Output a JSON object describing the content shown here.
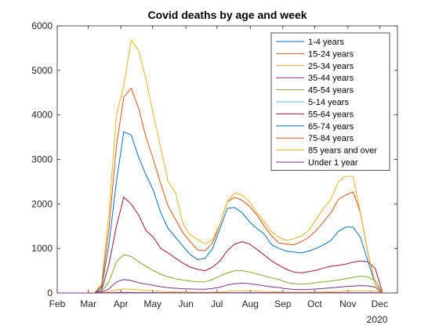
{
  "chart_data": {
    "type": "line",
    "title": "Covid deaths by age and week",
    "xlabel": "",
    "ylabel": "",
    "year_label": "2020",
    "xlim": [
      0,
      46
    ],
    "ylim": [
      0,
      6000
    ],
    "grid": false,
    "legend_position": "top-right",
    "x_ticks": [
      {
        "label": "Feb",
        "week": 0
      },
      {
        "label": "Mar",
        "week": 4.2
      },
      {
        "label": "Apr",
        "week": 8.6
      },
      {
        "label": "May",
        "week": 12.9
      },
      {
        "label": "Jun",
        "week": 17.4
      },
      {
        "label": "Jul",
        "week": 21.6
      },
      {
        "label": "Aug",
        "week": 26.1
      },
      {
        "label": "Sep",
        "week": 30.5
      },
      {
        "label": "Oct",
        "week": 34.8
      },
      {
        "label": "Nov",
        "week": 39.3
      },
      {
        "label": "Dec",
        "week": 43.6
      }
    ],
    "y_ticks": [
      0,
      1000,
      2000,
      3000,
      4000,
      5000,
      6000
    ],
    "x": [
      0,
      1,
      2,
      3,
      4,
      5,
      6,
      7,
      8,
      9,
      10,
      11,
      12,
      13,
      14,
      15,
      16,
      17,
      18,
      19,
      20,
      21,
      22,
      23,
      24,
      25,
      26,
      27,
      28,
      29,
      30,
      31,
      32,
      33,
      34,
      35,
      36,
      37,
      38,
      39,
      40,
      41,
      42,
      43,
      44
    ],
    "series": [
      {
        "name": "1-4 years",
        "color": "#0072BD",
        "values": [
          0,
          0,
          0,
          0,
          0,
          0,
          0,
          1,
          2,
          2,
          3,
          2,
          2,
          2,
          1,
          1,
          1,
          1,
          1,
          1,
          1,
          1,
          1,
          1,
          1,
          1,
          1,
          1,
          1,
          1,
          1,
          1,
          1,
          1,
          1,
          1,
          1,
          1,
          1,
          1,
          1,
          1,
          1,
          1,
          0
        ]
      },
      {
        "name": "15-24 years",
        "color": "#D95319",
        "values": [
          0,
          0,
          0,
          0,
          0,
          0,
          1,
          5,
          12,
          15,
          14,
          11,
          8,
          6,
          5,
          4,
          3,
          3,
          3,
          3,
          3,
          3,
          3,
          4,
          4,
          4,
          4,
          4,
          3,
          3,
          3,
          3,
          3,
          3,
          3,
          3,
          3,
          3,
          3,
          4,
          4,
          4,
          4,
          3,
          0
        ]
      },
      {
        "name": "25-34 years",
        "color": "#EDB120",
        "values": [
          0,
          0,
          0,
          0,
          0,
          0,
          4,
          30,
          70,
          90,
          85,
          70,
          55,
          45,
          35,
          30,
          25,
          22,
          20,
          18,
          18,
          20,
          25,
          35,
          45,
          50,
          48,
          40,
          32,
          28,
          25,
          20,
          18,
          18,
          20,
          22,
          25,
          28,
          32,
          38,
          45,
          50,
          48,
          40,
          0
        ]
      },
      {
        "name": "35-44 years",
        "color": "#7E2F8E",
        "values": [
          0,
          0,
          0,
          0,
          0,
          0,
          10,
          90,
          250,
          300,
          280,
          230,
          200,
          170,
          140,
          120,
          105,
          95,
          90,
          85,
          85,
          100,
          130,
          180,
          210,
          220,
          210,
          185,
          160,
          135,
          120,
          95,
          80,
          75,
          80,
          90,
          100,
          115,
          130,
          145,
          155,
          165,
          160,
          130,
          0
        ]
      },
      {
        "name": "45-54 years",
        "color": "#77AC30",
        "values": [
          0,
          0,
          0,
          0,
          0,
          0,
          30,
          250,
          700,
          860,
          820,
          700,
          600,
          500,
          420,
          360,
          320,
          290,
          270,
          250,
          250,
          300,
          380,
          450,
          500,
          500,
          470,
          430,
          380,
          340,
          300,
          240,
          210,
          200,
          210,
          230,
          250,
          270,
          290,
          320,
          350,
          380,
          360,
          280,
          0
        ]
      },
      {
        "name": "5-14 years",
        "color": "#4DBEEE",
        "values": [
          0,
          0,
          0,
          0,
          0,
          0,
          0,
          1,
          3,
          4,
          4,
          3,
          3,
          2,
          2,
          1,
          1,
          1,
          1,
          1,
          1,
          1,
          1,
          2,
          2,
          2,
          2,
          2,
          1,
          1,
          1,
          1,
          1,
          1,
          1,
          1,
          1,
          1,
          1,
          1,
          1,
          1,
          1,
          1,
          0
        ]
      },
      {
        "name": "55-64 years",
        "color": "#A2142F",
        "values": [
          0,
          0,
          0,
          0,
          0,
          0,
          60,
          650,
          1500,
          2150,
          2000,
          1750,
          1400,
          1250,
          1000,
          900,
          780,
          670,
          580,
          530,
          500,
          580,
          720,
          950,
          1100,
          1150,
          1100,
          980,
          850,
          720,
          620,
          530,
          470,
          450,
          480,
          510,
          560,
          600,
          620,
          650,
          690,
          720,
          700,
          550,
          0
        ]
      },
      {
        "name": "65-74 years",
        "color": "#0072BD",
        "values": [
          0,
          0,
          0,
          0,
          0,
          0,
          120,
          1100,
          2500,
          3620,
          3550,
          3050,
          2650,
          2300,
          1800,
          1450,
          1250,
          1050,
          860,
          750,
          780,
          1000,
          1450,
          1900,
          1920,
          1800,
          1600,
          1450,
          1320,
          1080,
          1000,
          940,
          920,
          900,
          940,
          1000,
          1080,
          1180,
          1380,
          1480,
          1480,
          1250,
          720,
          200,
          0
        ]
      },
      {
        "name": "75-84 years",
        "color": "#D95319",
        "values": [
          0,
          0,
          0,
          0,
          0,
          0,
          160,
          1450,
          3300,
          4400,
          4600,
          4150,
          3500,
          3000,
          2450,
          1950,
          1650,
          1350,
          1150,
          960,
          950,
          1120,
          1550,
          2050,
          2150,
          2080,
          1950,
          1750,
          1500,
          1280,
          1120,
          1100,
          1080,
          1150,
          1250,
          1400,
          1600,
          1800,
          2100,
          2200,
          2270,
          1800,
          900,
          200,
          0
        ]
      },
      {
        "name": "85 years and over",
        "color": "#EDB120",
        "values": [
          0,
          0,
          0,
          0,
          0,
          0,
          200,
          1800,
          4000,
          4650,
          5680,
          5450,
          4800,
          4000,
          3250,
          2500,
          2250,
          1550,
          1300,
          1200,
          1100,
          1200,
          1550,
          2050,
          2250,
          2200,
          2050,
          1800,
          1600,
          1370,
          1250,
          1180,
          1220,
          1280,
          1400,
          1650,
          1900,
          2100,
          2500,
          2620,
          2620,
          1800,
          900,
          200,
          0
        ]
      },
      {
        "name": "Under 1 year",
        "color": "#7E2F8E",
        "values": [
          0,
          0,
          0,
          0,
          0,
          0,
          0,
          1,
          2,
          3,
          3,
          3,
          2,
          2,
          2,
          2,
          2,
          2,
          2,
          2,
          2,
          2,
          2,
          2,
          2,
          2,
          2,
          2,
          2,
          2,
          2,
          2,
          2,
          2,
          2,
          2,
          2,
          2,
          2,
          2,
          2,
          2,
          2,
          2,
          0
        ]
      }
    ]
  }
}
